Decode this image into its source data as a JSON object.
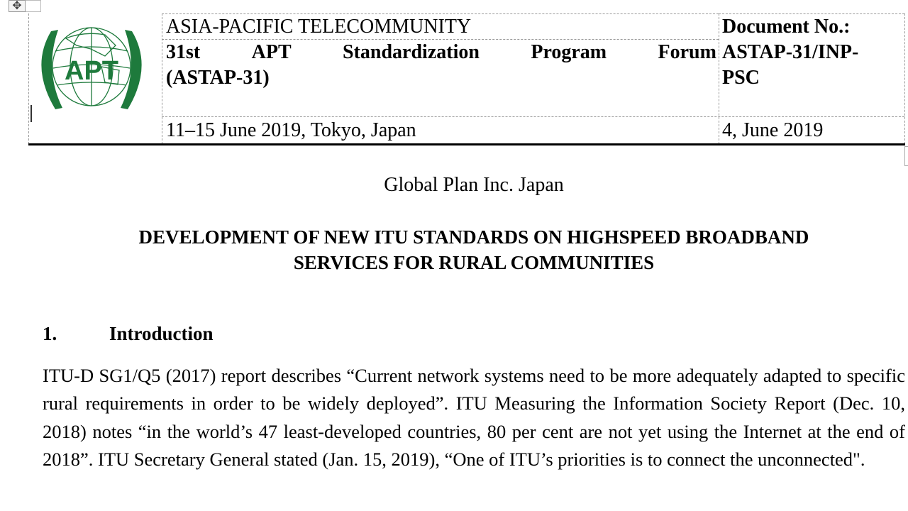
{
  "header": {
    "organization": "ASIA-PACIFIC TELECOMMUNITY",
    "meeting_line1_words": [
      "31st",
      "APT",
      "Standardization",
      "Program",
      "Forum"
    ],
    "meeting_line2": "(ASTAP-31)",
    "dates_location": "11–15 June 2019, Tokyo, Japan",
    "doc_no_label": "Document No.:",
    "doc_no_line1": "ASTAP-31/INP-",
    "doc_no_line2": "PSC",
    "doc_date": "4, June 2019",
    "logo_text": "APT",
    "logo_color": "#1e7a3c"
  },
  "source": "Global Plan Inc. Japan",
  "title_line1": "DEVELOPMENT OF NEW ITU STANDARDS ON HIGHSPEED BROADBAND",
  "title_line2": "SERVICES FOR RURAL COMMUNITIES",
  "section": {
    "number": "1.",
    "heading": "Introduction"
  },
  "paragraph": "ITU-D SG1/Q5 (2017) report describes “Current network systems need to be more adequately adapted to specific rural requirements in order to be widely deployed”. ITU Measuring the Information Society Report (Dec. 10, 2018) notes “in the world’s 47 least-developed countries, 80 per cent are not yet using the Internet at the end of 2018”. ITU Secretary General stated (Jan. 15, 2019), “One of ITU’s priorities is to connect the unconnected\"."
}
